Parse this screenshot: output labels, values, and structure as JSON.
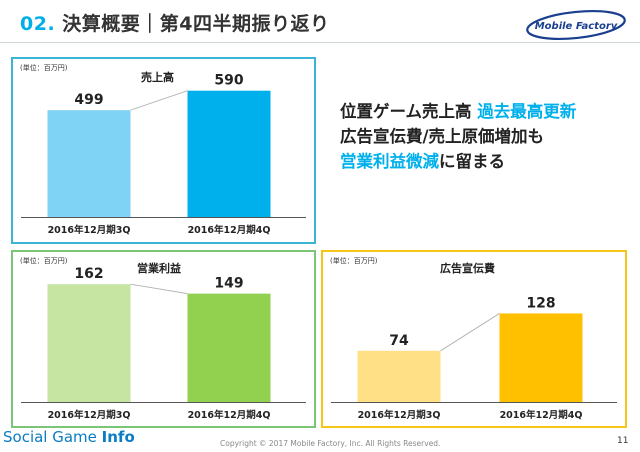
{
  "header": {
    "number": "02.",
    "title": "決算概要｜第4四半期振り返り"
  },
  "logo": {
    "text": "Mobile Factory"
  },
  "summary": {
    "line1_a": "位置ゲーム売上高 ",
    "line1_b": "過去最高更新",
    "line2": "広告宣伝費/売上原価増加も",
    "line3_a": "営業利益微減",
    "line3_b": "に留まる"
  },
  "footer": {
    "brand_a": "Social Game ",
    "brand_b": "Info",
    "copyright": "Copyright © 2017 Mobile Factory, Inc. All Rights Reserved.",
    "page": "11"
  },
  "chart_data": [
    {
      "type": "bar",
      "title": "売上高",
      "unit": "(単位：百万円)",
      "categories": [
        "2016年12月期3Q",
        "2016年12月期4Q"
      ],
      "values": [
        499,
        590
      ],
      "labels": [
        "499",
        "590"
      ],
      "colors": [
        "#7fd3f4",
        "#00b0ec"
      ],
      "ylim": [
        0,
        640
      ]
    },
    {
      "type": "bar",
      "title": "営業利益",
      "unit": "(単位：百万円)",
      "categories": [
        "2016年12月期3Q",
        "2016年12月期4Q"
      ],
      "values": [
        162,
        149
      ],
      "labels": [
        "162",
        "149"
      ],
      "colors": [
        "#c6e4a2",
        "#92d050"
      ],
      "ylim": [
        0,
        176
      ]
    },
    {
      "type": "bar",
      "title": "広告宣伝費",
      "unit": "(単位：百万円)",
      "categories": [
        "2016年12月期3Q",
        "2016年12月期4Q"
      ],
      "values": [
        74,
        128
      ],
      "labels": [
        "74",
        "128"
      ],
      "colors": [
        "#ffe086",
        "#ffc000"
      ],
      "ylim": [
        0,
        185
      ]
    }
  ]
}
